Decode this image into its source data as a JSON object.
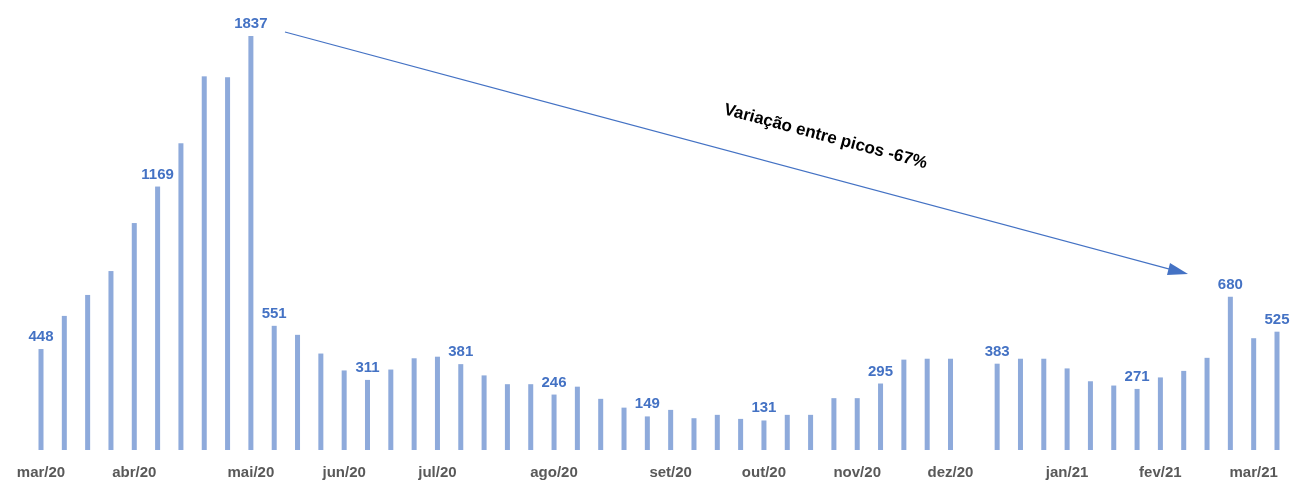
{
  "chart_data": {
    "type": "bar",
    "color": "#8eaadb",
    "categories": [
      "mar/20",
      null,
      null,
      null,
      "abr/20",
      null,
      null,
      null,
      null,
      "mai/20",
      null,
      null,
      null,
      "jun/20",
      null,
      null,
      null,
      "jul/20",
      null,
      null,
      null,
      null,
      "ago/20",
      null,
      null,
      null,
      null,
      "set/20",
      null,
      null,
      null,
      "out/20",
      null,
      null,
      null,
      "nov/20",
      null,
      null,
      null,
      "dez/20",
      null,
      null,
      null,
      null,
      "jan/21",
      null,
      null,
      null,
      "fev/21",
      null,
      null,
      null,
      "mar/21",
      null
    ],
    "values": [
      448,
      595,
      688,
      794,
      1007,
      1169,
      1361,
      1658,
      1654,
      1837,
      551,
      511,
      428,
      353,
      311,
      357,
      407,
      414,
      381,
      331,
      292,
      292,
      246,
      281,
      227,
      188,
      149,
      178,
      141,
      156,
      138,
      131,
      156,
      156,
      230,
      230,
      295,
      401,
      405,
      405,
      null,
      383,
      405,
      405,
      362,
      305,
      286,
      271,
      322,
      351,
      409,
      680,
      496,
      525
    ],
    "value_labels": [
      "448",
      null,
      null,
      null,
      null,
      "1169",
      null,
      null,
      null,
      "1837",
      "551",
      null,
      null,
      null,
      "311",
      null,
      null,
      null,
      "381",
      null,
      null,
      null,
      "246",
      null,
      null,
      null,
      "149",
      null,
      null,
      null,
      null,
      "131",
      null,
      null,
      null,
      null,
      "295",
      null,
      null,
      null,
      null,
      "383",
      null,
      null,
      null,
      null,
      null,
      "271",
      null,
      null,
      null,
      "680",
      null,
      "525"
    ],
    "annotations": [
      "Variação entre picos -67%"
    ],
    "grid": false
  }
}
